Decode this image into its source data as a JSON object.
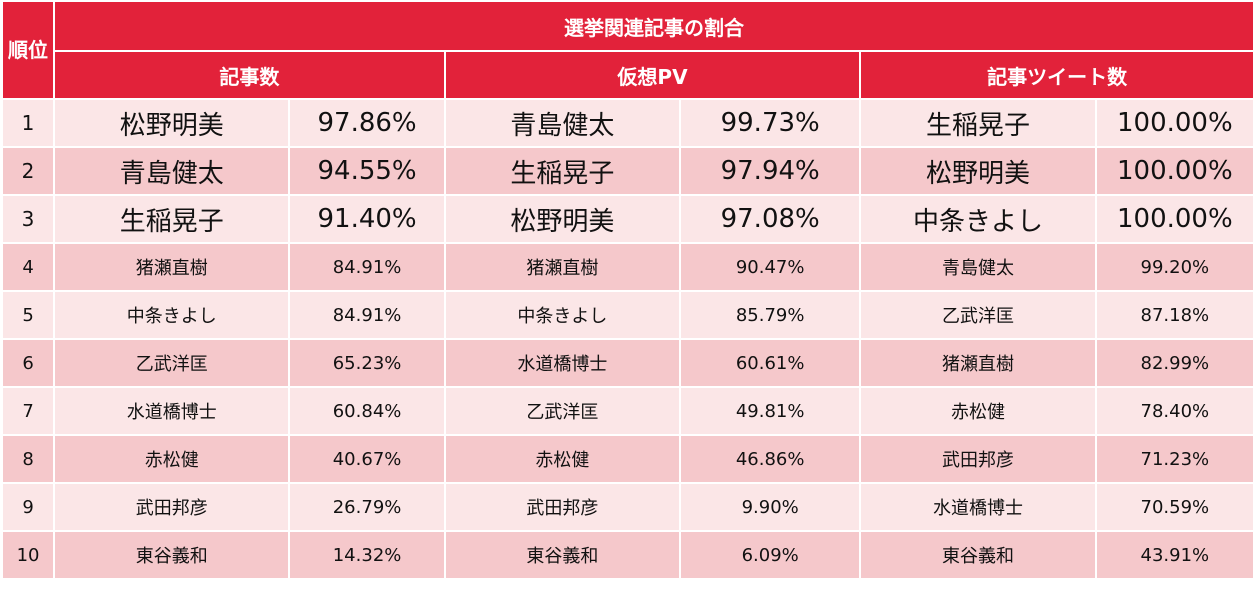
{
  "header": {
    "rank": "順位",
    "title": "選挙関連記事の割合",
    "columns": [
      "記事数",
      "仮想PV",
      "記事ツイート数"
    ]
  },
  "rows": [
    {
      "rank": "1",
      "c1_name": "松野明美",
      "c1_val": "97.86%",
      "c2_name": "青島健太",
      "c2_val": "99.73%",
      "c3_name": "生稲晃子",
      "c3_val": "100.00%"
    },
    {
      "rank": "2",
      "c1_name": "青島健太",
      "c1_val": "94.55%",
      "c2_name": "生稲晃子",
      "c2_val": "97.94%",
      "c3_name": "松野明美",
      "c3_val": "100.00%"
    },
    {
      "rank": "3",
      "c1_name": "生稲晃子",
      "c1_val": "91.40%",
      "c2_name": "松野明美",
      "c2_val": "97.08%",
      "c3_name": "中条きよし",
      "c3_val": "100.00%"
    },
    {
      "rank": "4",
      "c1_name": "猪瀬直樹",
      "c1_val": "84.91%",
      "c2_name": "猪瀬直樹",
      "c2_val": "90.47%",
      "c3_name": "青島健太",
      "c3_val": "99.20%"
    },
    {
      "rank": "5",
      "c1_name": "中条きよし",
      "c1_val": "84.91%",
      "c2_name": "中条きよし",
      "c2_val": "85.79%",
      "c3_name": "乙武洋匡",
      "c3_val": "87.18%"
    },
    {
      "rank": "6",
      "c1_name": "乙武洋匡",
      "c1_val": "65.23%",
      "c2_name": "水道橋博士",
      "c2_val": "60.61%",
      "c3_name": "猪瀬直樹",
      "c3_val": "82.99%"
    },
    {
      "rank": "7",
      "c1_name": "水道橋博士",
      "c1_val": "60.84%",
      "c2_name": "乙武洋匡",
      "c2_val": "49.81%",
      "c3_name": "赤松健",
      "c3_val": "78.40%"
    },
    {
      "rank": "8",
      "c1_name": "赤松健",
      "c1_val": "40.67%",
      "c2_name": "赤松健",
      "c2_val": "46.86%",
      "c3_name": "武田邦彦",
      "c3_val": "71.23%"
    },
    {
      "rank": "9",
      "c1_name": "武田邦彦",
      "c1_val": "26.79%",
      "c2_name": "武田邦彦",
      "c2_val": "9.90%",
      "c3_name": "水道橋博士",
      "c3_val": "70.59%"
    },
    {
      "rank": "10",
      "c1_name": "東谷義和",
      "c1_val": "14.32%",
      "c2_name": "東谷義和",
      "c2_val": "6.09%",
      "c3_name": "東谷義和",
      "c3_val": "43.91%"
    }
  ]
}
